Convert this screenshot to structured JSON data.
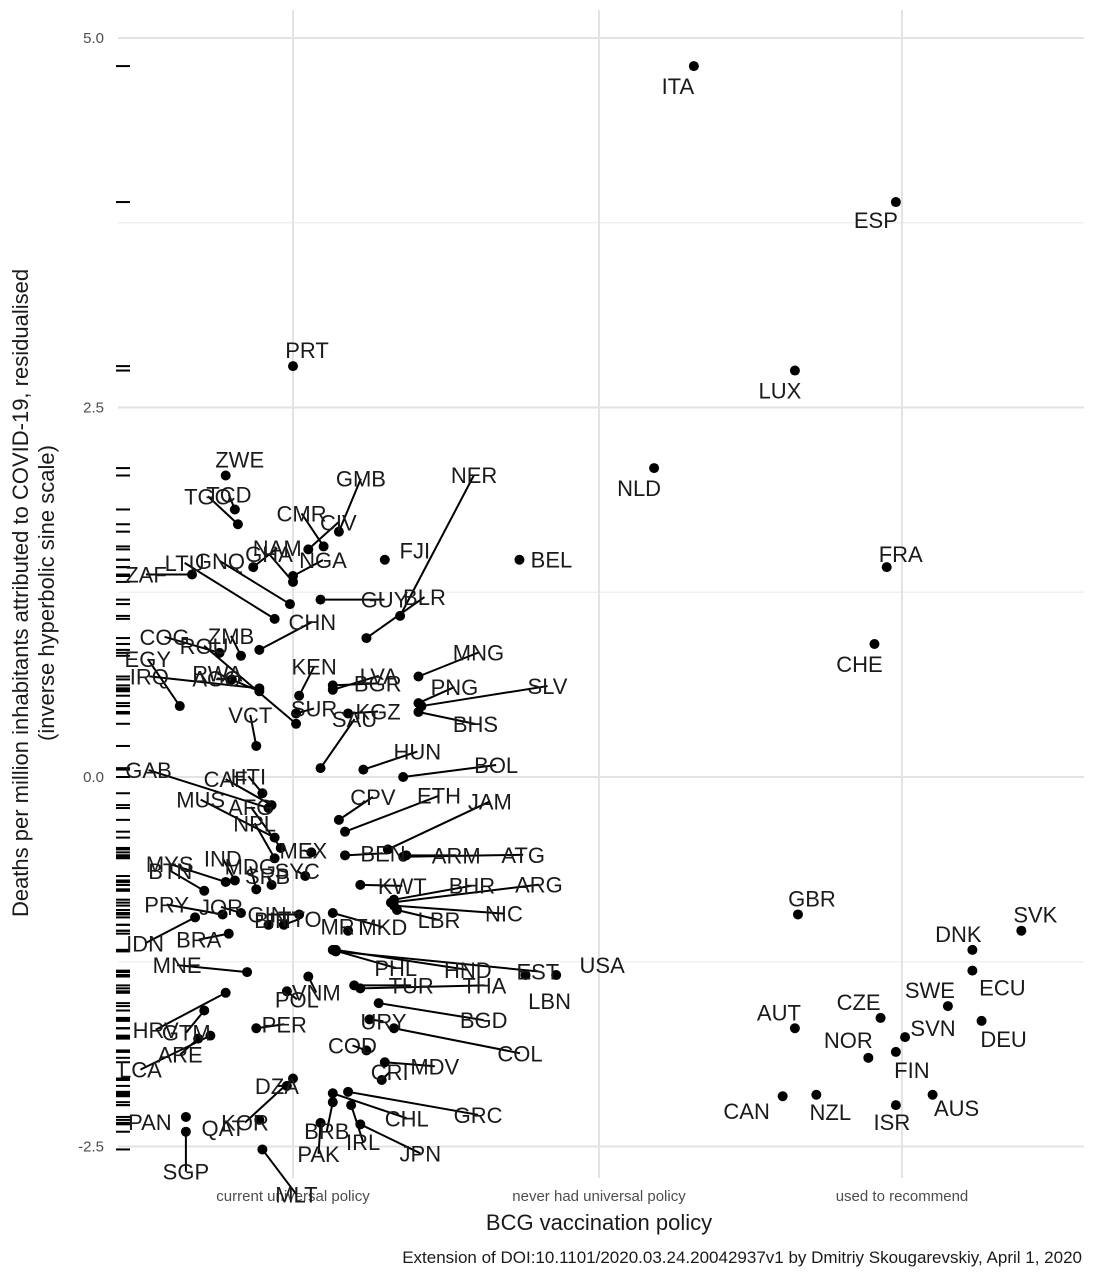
{
  "chart_data": {
    "type": "scatter",
    "xlabel": "BCG vaccination policy",
    "ylabel": "Deaths per million inhabitants attributed to COVID-19, residualised",
    "ylabel_line2": "(inverse hyperbolic sine scale)",
    "caption": "Extension of DOI:10.1101/2020.03.24.20042937v1 by Dmitriy Skougarevskiy, April 1, 2020",
    "categories": [
      "current universal policy",
      "never had universal policy",
      "used to recommend"
    ],
    "yticks": [
      "5.0",
      "2.5",
      "0.0",
      "-2.5"
    ],
    "ylim": [
      -2.65,
      5.2
    ],
    "grid": true,
    "points": [
      {
        "label": "PRT",
        "cat": 0,
        "dx": 0.0,
        "y": 2.78
      },
      {
        "label": "ZWE",
        "cat": 0,
        "dx": -0.22,
        "y": 2.04
      },
      {
        "label": "TCD",
        "cat": 0,
        "dx": -0.19,
        "y": 1.81
      },
      {
        "label": "TGO",
        "cat": 0,
        "dx": -0.18,
        "y": 1.71
      },
      {
        "label": "GMB",
        "cat": 0,
        "dx": 0.15,
        "y": 1.66
      },
      {
        "label": "CMR",
        "cat": 0,
        "dx": 0.1,
        "y": 1.56
      },
      {
        "label": "CIV",
        "cat": 0,
        "dx": 0.05,
        "y": 1.54
      },
      {
        "label": "NAM",
        "cat": 0,
        "dx": -0.13,
        "y": 1.42
      },
      {
        "label": "FJI",
        "cat": 0,
        "dx": 0.3,
        "y": 1.47
      },
      {
        "label": "BEL",
        "cat": 1,
        "dx": -0.26,
        "y": 1.47
      },
      {
        "label": "NER",
        "cat": 0,
        "dx": 0.35,
        "y": 1.09
      },
      {
        "label": "ZAF",
        "cat": 0,
        "dx": -0.33,
        "y": 1.37
      },
      {
        "label": "NGA",
        "cat": 0,
        "dx": 0.0,
        "y": 1.36
      },
      {
        "label": "GHA",
        "cat": 0,
        "dx": 0.0,
        "y": 1.32
      },
      {
        "label": "GUY",
        "cat": 0,
        "dx": 0.09,
        "y": 1.2
      },
      {
        "label": "LTU",
        "cat": 0,
        "dx": -0.06,
        "y": 1.07
      },
      {
        "label": "GNQ",
        "cat": 0,
        "dx": -0.01,
        "y": 1.17
      },
      {
        "label": "BLR",
        "cat": 0,
        "dx": 0.24,
        "y": 0.94
      },
      {
        "label": "CHN",
        "cat": 0,
        "dx": -0.11,
        "y": 0.86
      },
      {
        "label": "COG",
        "cat": 0,
        "dx": -0.24,
        "y": 0.84
      },
      {
        "label": "ZMB",
        "cat": 0,
        "dx": -0.17,
        "y": 0.82
      },
      {
        "label": "BGR",
        "cat": 0,
        "dx": 0.13,
        "y": 0.62
      },
      {
        "label": "KEN",
        "cat": 0,
        "dx": 0.02,
        "y": 0.55
      },
      {
        "label": "IRQ",
        "cat": 0,
        "dx": -0.11,
        "y": 0.6
      },
      {
        "label": "RWA",
        "cat": 0,
        "dx": -0.11,
        "y": 0.58
      },
      {
        "label": "MNG",
        "cat": 0,
        "dx": 0.41,
        "y": 0.68
      },
      {
        "label": "LVA",
        "cat": 0,
        "dx": 0.13,
        "y": 0.59
      },
      {
        "label": "AGO",
        "cat": 0,
        "dx": -0.2,
        "y": 0.66
      },
      {
        "label": "PNG",
        "cat": 0,
        "dx": 0.41,
        "y": 0.5
      },
      {
        "label": "SLV",
        "cat": 0,
        "dx": 0.42,
        "y": 0.48
      },
      {
        "label": "EGY",
        "cat": 0,
        "dx": -0.37,
        "y": 0.48
      },
      {
        "label": "SUR",
        "cat": 0,
        "dx": 0.01,
        "y": 0.43
      },
      {
        "label": "KGZ",
        "cat": 0,
        "dx": 0.18,
        "y": 0.43
      },
      {
        "label": "BHS",
        "cat": 0,
        "dx": 0.41,
        "y": 0.44
      },
      {
        "label": "ROU",
        "cat": 0,
        "dx": 0.01,
        "y": 0.36
      },
      {
        "label": "VCT",
        "cat": 0,
        "dx": -0.12,
        "y": 0.21
      },
      {
        "label": "SAU",
        "cat": 0,
        "dx": 0.09,
        "y": 0.06
      },
      {
        "label": "HUN",
        "cat": 0,
        "dx": 0.23,
        "y": 0.05
      },
      {
        "label": "BOL",
        "cat": 0,
        "dx": 0.36,
        "y": 0.0
      },
      {
        "label": "HTI",
        "cat": 0,
        "dx": -0.1,
        "y": -0.11
      },
      {
        "label": "CAF",
        "cat": 0,
        "dx": -0.07,
        "y": -0.19
      },
      {
        "label": "GAB",
        "cat": 0,
        "dx": -0.08,
        "y": -0.21
      },
      {
        "label": "CPV",
        "cat": 0,
        "dx": 0.15,
        "y": -0.29
      },
      {
        "label": "ETH",
        "cat": 0,
        "dx": 0.17,
        "y": -0.37
      },
      {
        "label": "MUS",
        "cat": 0,
        "dx": -0.06,
        "y": -0.41
      },
      {
        "label": "AFG",
        "cat": 0,
        "dx": -0.04,
        "y": -0.48
      },
      {
        "label": "NPL",
        "cat": 0,
        "dx": -0.06,
        "y": -0.55
      },
      {
        "label": "MEX",
        "cat": 0,
        "dx": 0.06,
        "y": -0.51
      },
      {
        "label": "JAM",
        "cat": 0,
        "dx": 0.31,
        "y": -0.49
      },
      {
        "label": "BEN",
        "cat": 0,
        "dx": 0.17,
        "y": -0.53
      },
      {
        "label": "MYS",
        "cat": 0,
        "dx": -0.22,
        "y": -0.71
      },
      {
        "label": "IND",
        "cat": 0,
        "dx": -0.19,
        "y": -0.7
      },
      {
        "label": "SRB",
        "cat": 0,
        "dx": -0.07,
        "y": -0.73
      },
      {
        "label": "ARM",
        "cat": 0,
        "dx": 0.37,
        "y": -0.53
      },
      {
        "label": "ATG",
        "cat": 0,
        "dx": 0.36,
        "y": -0.54
      },
      {
        "label": "BTN",
        "cat": 0,
        "dx": -0.29,
        "y": -0.77
      },
      {
        "label": "MDG",
        "cat": 0,
        "dx": -0.12,
        "y": -0.76
      },
      {
        "label": "SYC",
        "cat": 0,
        "dx": 0.04,
        "y": -0.67
      },
      {
        "label": "KWT",
        "cat": 0,
        "dx": 0.22,
        "y": -0.73
      },
      {
        "label": "BHR",
        "cat": 0,
        "dx": 0.33,
        "y": -0.83
      },
      {
        "label": "ARG",
        "cat": 0,
        "dx": 0.32,
        "y": -0.85
      },
      {
        "label": "PRY",
        "cat": 0,
        "dx": -0.23,
        "y": -0.93
      },
      {
        "label": "JOR",
        "cat": 0,
        "dx": -0.17,
        "y": -0.92
      },
      {
        "label": "GIN",
        "cat": 0,
        "dx": 0.02,
        "y": -0.93
      },
      {
        "label": "MKD",
        "cat": 0,
        "dx": 0.13,
        "y": -0.92
      },
      {
        "label": "LBR",
        "cat": 0,
        "dx": 0.34,
        "y": -0.9
      },
      {
        "label": "NIC",
        "cat": 0,
        "dx": 0.33,
        "y": -0.87
      },
      {
        "label": "IDN",
        "cat": 0,
        "dx": -0.32,
        "y": -0.95
      },
      {
        "label": "BRA",
        "cat": 0,
        "dx": -0.21,
        "y": -1.06
      },
      {
        "label": "BIH",
        "cat": 0,
        "dx": -0.08,
        "y": -1.0
      },
      {
        "label": "TTO",
        "cat": 0,
        "dx": -0.03,
        "y": -1.0
      },
      {
        "label": "MRT",
        "cat": 0,
        "dx": 0.18,
        "y": -1.04
      },
      {
        "label": "PHL",
        "cat": 0,
        "dx": 0.13,
        "y": -1.17
      },
      {
        "label": "HND",
        "cat": 0,
        "dx": 0.14,
        "y": -1.17
      },
      {
        "label": "EST",
        "cat": 0,
        "dx": 0.14,
        "y": -1.18
      },
      {
        "label": "USA",
        "cat": 1,
        "dx": -0.14,
        "y": -1.34
      },
      {
        "label": "LBN",
        "cat": 1,
        "dx": -0.24,
        "y": -1.34
      },
      {
        "label": "MNE",
        "cat": 0,
        "dx": -0.15,
        "y": -1.32
      },
      {
        "label": "VNM",
        "cat": 0,
        "dx": 0.05,
        "y": -1.35
      },
      {
        "label": "TUR",
        "cat": 0,
        "dx": 0.2,
        "y": -1.41
      },
      {
        "label": "THA",
        "cat": 0,
        "dx": 0.22,
        "y": -1.43
      },
      {
        "label": "POL",
        "cat": 0,
        "dx": -0.02,
        "y": -1.45
      },
      {
        "label": "HRV",
        "cat": 0,
        "dx": -0.22,
        "y": -1.46
      },
      {
        "label": "BGD",
        "cat": 0,
        "dx": 0.28,
        "y": -1.53
      },
      {
        "label": "GTM",
        "cat": 0,
        "dx": -0.29,
        "y": -1.58
      },
      {
        "label": "URY",
        "cat": 0,
        "dx": 0.25,
        "y": -1.64
      },
      {
        "label": "PER",
        "cat": 0,
        "dx": -0.12,
        "y": -1.7
      },
      {
        "label": "COL",
        "cat": 0,
        "dx": 0.33,
        "y": -1.7
      },
      {
        "label": "LCA",
        "cat": 0,
        "dx": -0.27,
        "y": -1.75
      },
      {
        "label": "ARE",
        "cat": 0,
        "dx": -0.31,
        "y": -1.77
      },
      {
        "label": "COD",
        "cat": 0,
        "dx": 0.24,
        "y": -1.85
      },
      {
        "label": "MDV",
        "cat": 0,
        "dx": 0.3,
        "y": -1.93
      },
      {
        "label": "CRI",
        "cat": 0,
        "dx": 0.29,
        "y": -2.05
      },
      {
        "label": "KOR",
        "cat": 0,
        "dx": 0.0,
        "y": -2.04
      },
      {
        "label": "DZA",
        "cat": 0,
        "dx": -0.02,
        "y": -2.09
      },
      {
        "label": "CHL",
        "cat": 0,
        "dx": 0.13,
        "y": -2.14
      },
      {
        "label": "GRC",
        "cat": 0,
        "dx": 0.18,
        "y": -2.13
      },
      {
        "label": "BRB",
        "cat": 0,
        "dx": 0.13,
        "y": -2.2
      },
      {
        "label": "IRL",
        "cat": 0,
        "dx": 0.19,
        "y": -2.22
      },
      {
        "label": "PAN",
        "cat": 0,
        "dx": -0.35,
        "y": -2.3
      },
      {
        "label": "QAT",
        "cat": 0,
        "dx": -0.11,
        "y": -2.32
      },
      {
        "label": "PAK",
        "cat": 0,
        "dx": 0.09,
        "y": -2.34
      },
      {
        "label": "JPN",
        "cat": 0,
        "dx": 0.22,
        "y": -2.35
      },
      {
        "label": "SGP",
        "cat": 0,
        "dx": -0.35,
        "y": -2.4
      },
      {
        "label": "MLT",
        "cat": 0,
        "dx": -0.1,
        "y": -2.52
      },
      {
        "label": "ITA",
        "cat": 1,
        "dx": 0.31,
        "y": 4.81
      },
      {
        "label": "NLD",
        "cat": 1,
        "dx": 0.18,
        "y": 2.09
      },
      {
        "label": "ESP",
        "cat": 2,
        "dx": -0.02,
        "y": 3.89
      },
      {
        "label": "LUX",
        "cat": 2,
        "dx": -0.35,
        "y": 2.75
      },
      {
        "label": "FRA",
        "cat": 2,
        "dx": -0.05,
        "y": 1.42
      },
      {
        "label": "CHE",
        "cat": 2,
        "dx": -0.09,
        "y": 0.9
      },
      {
        "label": "GBR",
        "cat": 2,
        "dx": -0.34,
        "y": -0.93
      },
      {
        "label": "SVK",
        "cat": 2,
        "dx": 0.39,
        "y": -1.04
      },
      {
        "label": "DNK",
        "cat": 2,
        "dx": 0.23,
        "y": -1.17
      },
      {
        "label": "ECU",
        "cat": 2,
        "dx": 0.23,
        "y": -1.31
      },
      {
        "label": "AUT",
        "cat": 2,
        "dx": -0.35,
        "y": -1.7
      },
      {
        "label": "CZE",
        "cat": 2,
        "dx": -0.07,
        "y": -1.63
      },
      {
        "label": "SWE",
        "cat": 2,
        "dx": 0.15,
        "y": -1.55
      },
      {
        "label": "SVN",
        "cat": 2,
        "dx": 0.01,
        "y": -1.76
      },
      {
        "label": "DEU",
        "cat": 2,
        "dx": 0.26,
        "y": -1.65
      },
      {
        "label": "NOR",
        "cat": 2,
        "dx": -0.11,
        "y": -1.9
      },
      {
        "label": "FIN",
        "cat": 2,
        "dx": -0.02,
        "y": -1.86
      },
      {
        "label": "CAN",
        "cat": 2,
        "dx": -0.39,
        "y": -2.16
      },
      {
        "label": "NZL",
        "cat": 2,
        "dx": -0.28,
        "y": -2.15
      },
      {
        "label": "ISR",
        "cat": 2,
        "dx": -0.02,
        "y": -2.22
      },
      {
        "label": "AUS",
        "cat": 2,
        "dx": 0.1,
        "y": -2.15
      }
    ]
  }
}
